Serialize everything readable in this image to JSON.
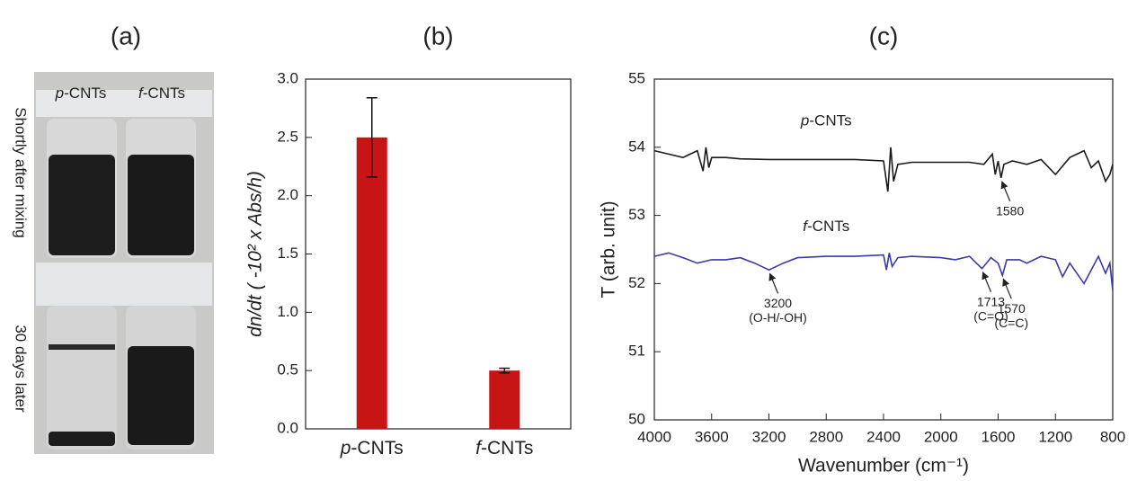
{
  "photo": {
    "label": "(a)",
    "columns": [
      "p-CNTs",
      "f-CNTs"
    ],
    "rows": [
      "Shortly after mixing",
      "30 days later"
    ]
  },
  "chart_data": [
    {
      "type": "bar",
      "title": "(b)",
      "y_label": "dn/dt ( -10² x Abs/h)",
      "categories": [
        "p-CNTs",
        "f-CNTs"
      ],
      "values": [
        2.5,
        0.5
      ],
      "errors": [
        0.34,
        0.02
      ],
      "color": "#c81414",
      "ylim": [
        0,
        3
      ],
      "yticks": [
        {
          "value": 0,
          "label": "0.0"
        },
        0.5,
        {
          "value": 1,
          "label": "1.0"
        },
        1.5,
        {
          "value": 2,
          "label": "2.0"
        },
        2.5,
        {
          "value": 3,
          "label": "3.0"
        }
      ]
    },
    {
      "type": "line",
      "title": "(c)",
      "x_label": "Wavenumber (cm⁻¹)",
      "y_label": "T (arb. unit)",
      "xlim": [
        4000,
        800
      ],
      "xticks": [
        4000,
        3600,
        3200,
        2800,
        2400,
        2000,
        1600,
        1200,
        800
      ],
      "ylim": [
        50,
        55
      ],
      "yticks": [
        50,
        51,
        52,
        53,
        54,
        55
      ],
      "series": [
        {
          "name": "p-CNTs",
          "color": "#1a1a1a",
          "x": [
            4000,
            3900,
            3800,
            3700,
            3660,
            3640,
            3620,
            3600,
            3500,
            3400,
            3200,
            3000,
            2800,
            2600,
            2400,
            2370,
            2350,
            2330,
            2300,
            2200,
            2000,
            1800,
            1700,
            1640,
            1620,
            1600,
            1580,
            1560,
            1500,
            1400,
            1300,
            1200,
            1100,
            1000,
            950,
            900,
            850,
            820,
            800
          ],
          "values": [
            53.95,
            53.9,
            53.85,
            53.95,
            53.65,
            54.0,
            53.7,
            53.85,
            53.85,
            53.83,
            53.82,
            53.82,
            53.82,
            53.82,
            53.8,
            53.35,
            54.0,
            53.5,
            53.75,
            53.78,
            53.78,
            53.78,
            53.75,
            53.9,
            53.6,
            53.8,
            53.55,
            53.75,
            53.8,
            53.75,
            53.82,
            53.6,
            53.85,
            53.95,
            53.7,
            53.8,
            53.5,
            53.6,
            53.75
          ]
        },
        {
          "name": "f-CNTs",
          "color": "#3a3aa8",
          "x": [
            4000,
            3900,
            3800,
            3700,
            3600,
            3500,
            3400,
            3300,
            3200,
            3100,
            3000,
            2800,
            2600,
            2400,
            2380,
            2360,
            2340,
            2300,
            2200,
            2000,
            1900,
            1800,
            1713,
            1650,
            1600,
            1570,
            1540,
            1450,
            1400,
            1300,
            1200,
            1150,
            1100,
            1000,
            900,
            850,
            820,
            800
          ],
          "values": [
            52.4,
            52.45,
            52.38,
            52.3,
            52.35,
            52.35,
            52.38,
            52.3,
            52.2,
            52.3,
            52.38,
            52.4,
            52.4,
            52.42,
            52.2,
            52.45,
            52.25,
            52.38,
            52.4,
            52.38,
            52.35,
            52.4,
            52.22,
            52.38,
            52.3,
            52.12,
            52.35,
            52.35,
            52.3,
            52.4,
            52.35,
            52.1,
            52.3,
            52.0,
            52.4,
            52.15,
            52.3,
            51.9
          ]
        }
      ],
      "annotations": [
        {
          "text": [
            "1580"
          ],
          "x": 1580,
          "y": 53.55
        },
        {
          "text": [
            "3200",
            "(O-H/-OH)"
          ],
          "x": 3200,
          "y": 52.2
        },
        {
          "text": [
            "1713",
            "(C=O)"
          ],
          "x": 1713,
          "y": 52.22
        },
        {
          "text": [
            "1570",
            "(C=C)"
          ],
          "x": 1570,
          "y": 52.12
        }
      ]
    }
  ]
}
